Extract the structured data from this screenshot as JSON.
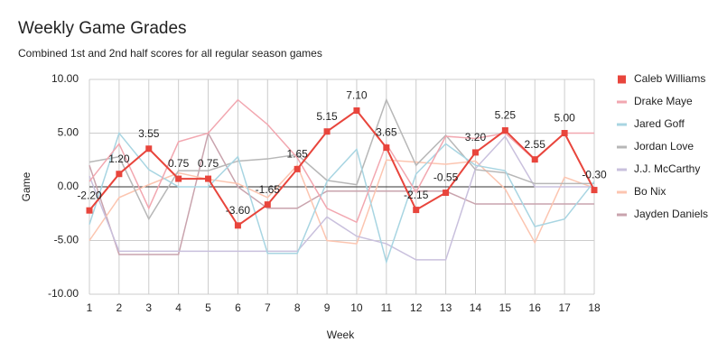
{
  "chart_data": {
    "type": "line",
    "title": "Weekly Game Grades",
    "subtitle": "Combined 1st and 2nd half scores for all regular season games",
    "x_label": "Week",
    "y_label": "Game",
    "x": [
      1,
      2,
      3,
      4,
      5,
      6,
      7,
      8,
      9,
      10,
      11,
      12,
      13,
      14,
      15,
      16,
      17,
      18
    ],
    "xlim": [
      1,
      18
    ],
    "xticks": [
      1,
      2,
      3,
      4,
      5,
      6,
      7,
      8,
      9,
      10,
      11,
      12,
      13,
      14,
      15,
      16,
      17,
      18
    ],
    "ylim": [
      -10,
      10
    ],
    "yticks": [
      {
        "value": -10,
        "label": "-10.00"
      },
      {
        "value": -5,
        "label": "-5.00"
      },
      {
        "value": 0,
        "label": "0.00"
      },
      {
        "value": 5,
        "label": "5.00"
      },
      {
        "value": 10,
        "label": "10.00"
      }
    ],
    "grid": true,
    "legend": "right",
    "series": [
      {
        "name": "Caleb Williams",
        "color": "#e8453c",
        "marker": "square",
        "values": [
          -2.2,
          1.2,
          3.55,
          0.75,
          0.75,
          -3.6,
          -1.65,
          1.65,
          5.15,
          7.1,
          3.65,
          -2.15,
          -0.55,
          3.2,
          5.25,
          2.55,
          5.0,
          -0.3
        ],
        "value_labels": [
          "-2.20",
          "1.20",
          "3.55",
          "0.75",
          "0.75",
          "-3.60",
          "-1.65",
          "1.65",
          "5.15",
          "7.10",
          "3.65",
          "-2.15",
          "-0.55",
          "3.20",
          "5.25",
          "2.55",
          "5.00",
          "-0.30"
        ]
      },
      {
        "name": "Drake Maye",
        "color": "#f2a7b0",
        "values": [
          0.5,
          4.0,
          -2.0,
          4.2,
          5.0,
          8.1,
          5.8,
          2.7,
          -2.0,
          -3.3,
          4.0,
          -0.5,
          4.7,
          4.5,
          5.0,
          2.5,
          5.0,
          5.0
        ]
      },
      {
        "name": "Jared Goff",
        "color": "#a8d5e2",
        "values": [
          -3.5,
          5.0,
          1.6,
          0.0,
          0.0,
          2.8,
          -6.2,
          -6.2,
          0.5,
          3.5,
          -7.0,
          1.2,
          4.0,
          2.0,
          1.5,
          -3.7,
          -3.0,
          0.5
        ]
      },
      {
        "name": "Jordan Love",
        "color": "#b7b7b7",
        "values": [
          2.3,
          2.8,
          -3.0,
          1.5,
          1.5,
          2.4,
          2.6,
          3.0,
          0.6,
          0.2,
          8.1,
          2.0,
          4.8,
          1.6,
          1.3,
          0.3,
          0.3,
          0.3
        ]
      },
      {
        "name": "J.J. McCarthy",
        "color": "#c9c0dd",
        "values": [
          1.0,
          -6.0,
          -6.0,
          -6.0,
          -6.0,
          -6.0,
          -6.0,
          -6.0,
          -2.8,
          -4.6,
          -5.3,
          -6.8,
          -6.8,
          1.7,
          4.7,
          0.0,
          0.0,
          0.0
        ]
      },
      {
        "name": "Bo Nix",
        "color": "#fcc5b0",
        "values": [
          -5.0,
          -1.0,
          0.2,
          1.3,
          0.7,
          0.3,
          -1.0,
          2.0,
          -5.0,
          -5.3,
          2.5,
          2.3,
          2.1,
          2.4,
          -0.2,
          -5.2,
          0.9,
          -0.1
        ]
      },
      {
        "name": "Jayden Daniels",
        "color": "#c9a3ad",
        "values": [
          2.0,
          -6.3,
          -6.3,
          -6.3,
          5.0,
          0.0,
          -2.0,
          -2.0,
          -0.4,
          -0.4,
          -0.4,
          -0.4,
          -0.4,
          -1.6,
          -1.6,
          -1.6,
          -1.6,
          -1.6
        ]
      }
    ]
  }
}
